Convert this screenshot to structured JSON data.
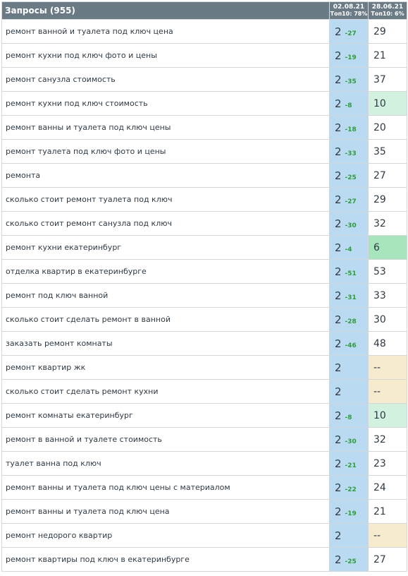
{
  "header": {
    "title": "Запросы (955)",
    "dates": [
      {
        "date": "02.08.21",
        "top": "Топ10: 78%"
      },
      {
        "date": "28.06.21",
        "top": "Топ10: 6%"
      }
    ]
  },
  "colors": {
    "header_bg": "#6b7b86",
    "current_col_bg": "#b9daf0",
    "change_up": "#2e9c3c",
    "highlight_light_green": "#d3f1df",
    "highlight_green": "#a7e6bd",
    "highlight_missing": "#f7ebcd"
  },
  "rows": [
    {
      "query": "ремонт ванной и туалета под ключ цена",
      "pos": "2",
      "chg": "-27",
      "prev": "29",
      "hl": ""
    },
    {
      "query": "ремонт кухни под ключ фото и цены",
      "pos": "2",
      "chg": "-19",
      "prev": "21",
      "hl": ""
    },
    {
      "query": "ремонт санузла стоимость",
      "pos": "2",
      "chg": "-35",
      "prev": "37",
      "hl": ""
    },
    {
      "query": "ремонт кухни под ключ стоимость",
      "pos": "2",
      "chg": "-8",
      "prev": "10",
      "hl": "light-green"
    },
    {
      "query": "ремонт ванны и туалета под ключ цены",
      "pos": "2",
      "chg": "-18",
      "prev": "20",
      "hl": ""
    },
    {
      "query": "ремонт туалета под ключ фото и цены",
      "pos": "2",
      "chg": "-33",
      "prev": "35",
      "hl": ""
    },
    {
      "query": "ремонта",
      "pos": "2",
      "chg": "-25",
      "prev": "27",
      "hl": ""
    },
    {
      "query": "сколько стоит ремонт туалета под ключ",
      "pos": "2",
      "chg": "-27",
      "prev": "29",
      "hl": ""
    },
    {
      "query": "сколько стоит ремонт санузла под ключ",
      "pos": "2",
      "chg": "-30",
      "prev": "32",
      "hl": ""
    },
    {
      "query": "ремонт кухни екатеринбург",
      "pos": "2",
      "chg": "-4",
      "prev": "6",
      "hl": "green"
    },
    {
      "query": "отделка квартир в екатеринбурге",
      "pos": "2",
      "chg": "-51",
      "prev": "53",
      "hl": ""
    },
    {
      "query": "ремонт под ключ ванной",
      "pos": "2",
      "chg": "-31",
      "prev": "33",
      "hl": ""
    },
    {
      "query": "сколько стоит сделать ремонт в ванной",
      "pos": "2",
      "chg": "-28",
      "prev": "30",
      "hl": ""
    },
    {
      "query": "заказать ремонт комнаты",
      "pos": "2",
      "chg": "-46",
      "prev": "48",
      "hl": ""
    },
    {
      "query": "ремонт квартир жк",
      "pos": "2",
      "chg": "",
      "prev": "--",
      "hl": "missing"
    },
    {
      "query": "сколько стоит сделать ремонт кухни",
      "pos": "2",
      "chg": "",
      "prev": "--",
      "hl": "missing"
    },
    {
      "query": "ремонт комнаты екатеринбург",
      "pos": "2",
      "chg": "-8",
      "prev": "10",
      "hl": "light-green"
    },
    {
      "query": "ремонт в ванной и туалете стоимость",
      "pos": "2",
      "chg": "-30",
      "prev": "32",
      "hl": ""
    },
    {
      "query": "туалет ванна под ключ",
      "pos": "2",
      "chg": "-21",
      "prev": "23",
      "hl": ""
    },
    {
      "query": "ремонт ванны и туалета под ключ цены с материалом",
      "pos": "2",
      "chg": "-22",
      "prev": "24",
      "hl": ""
    },
    {
      "query": "ремонт ванны и туалета под ключ цена",
      "pos": "2",
      "chg": "-19",
      "prev": "21",
      "hl": ""
    },
    {
      "query": "ремонт недорого квартир",
      "pos": "2",
      "chg": "",
      "prev": "--",
      "hl": "missing"
    },
    {
      "query": "ремонт квартиры под ключ в екатеринбурге",
      "pos": "2",
      "chg": "-25",
      "prev": "27",
      "hl": ""
    }
  ]
}
